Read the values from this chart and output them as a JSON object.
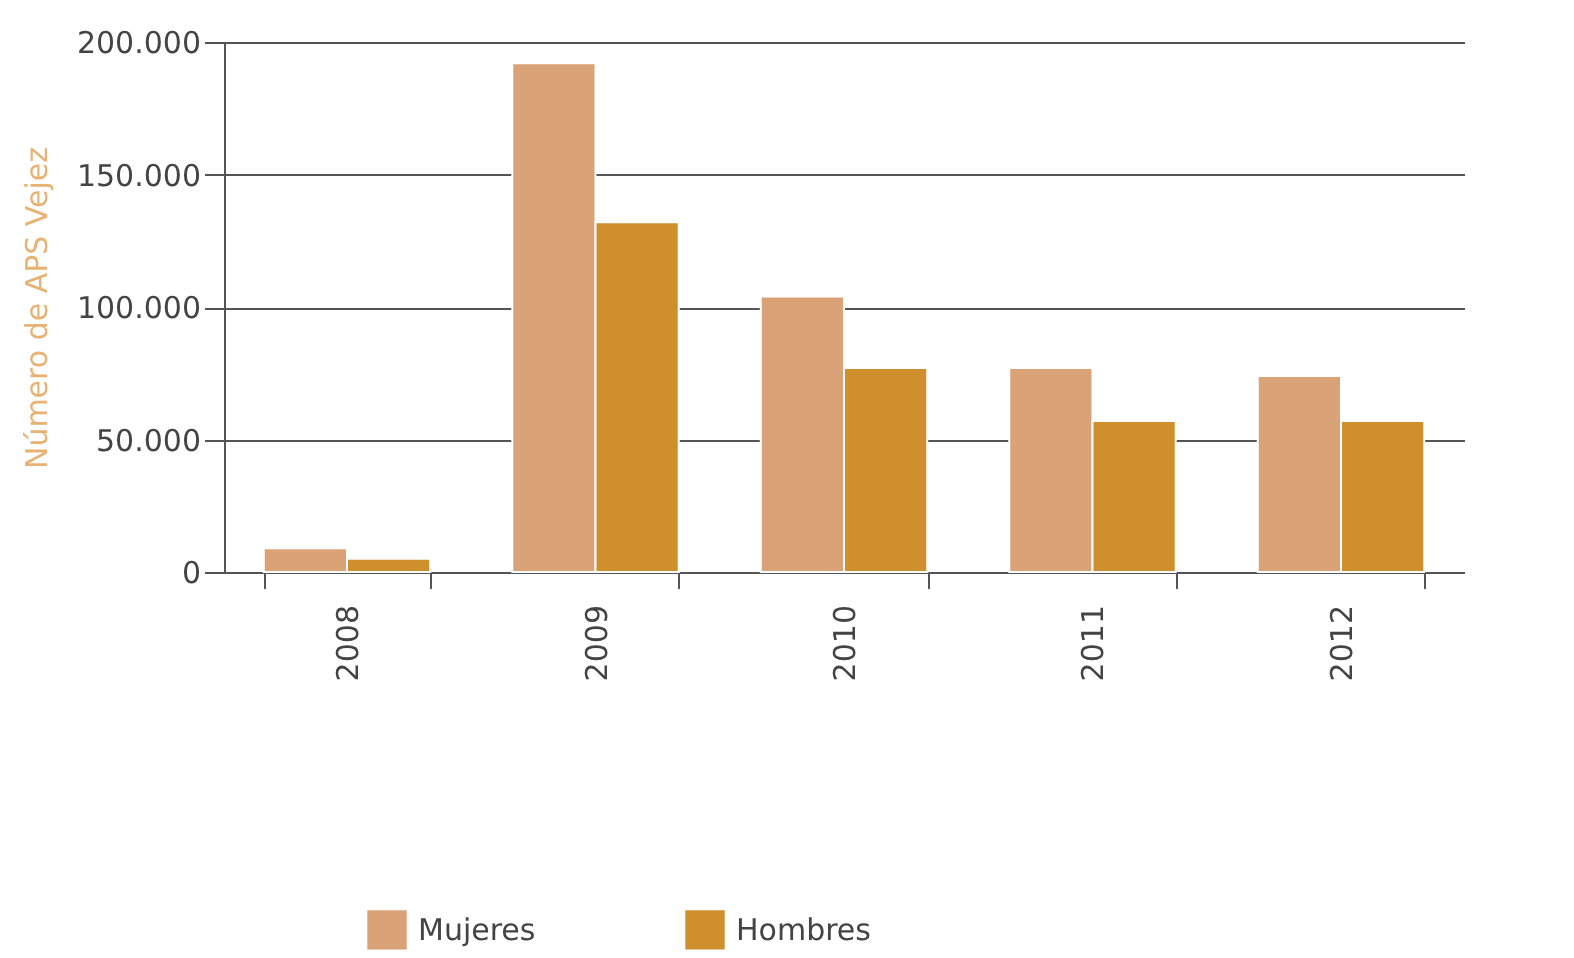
{
  "chart_data": {
    "type": "bar",
    "ylabel": "Número de APS Vejez",
    "categories": [
      "2008",
      "2009",
      "2010",
      "2011",
      "2012"
    ],
    "series": [
      {
        "name": "Mujeres",
        "color": "#d9a377",
        "values": [
          9000,
          192000,
          104000,
          77000,
          74000
        ]
      },
      {
        "name": "Hombres",
        "color": "#cf8f2c",
        "values": [
          5000,
          132000,
          77000,
          57000,
          57000
        ]
      }
    ],
    "ylim": [
      0,
      200000
    ],
    "yticks": [
      0,
      {
        "value": 50000,
        "label": "50.000"
      },
      {
        "value": 100000,
        "label": "100.000"
      },
      {
        "value": 150000,
        "label": "150.000"
      },
      {
        "value": 200000,
        "label": "200.000"
      }
    ],
    "grid": "y",
    "legend": "bottom"
  }
}
